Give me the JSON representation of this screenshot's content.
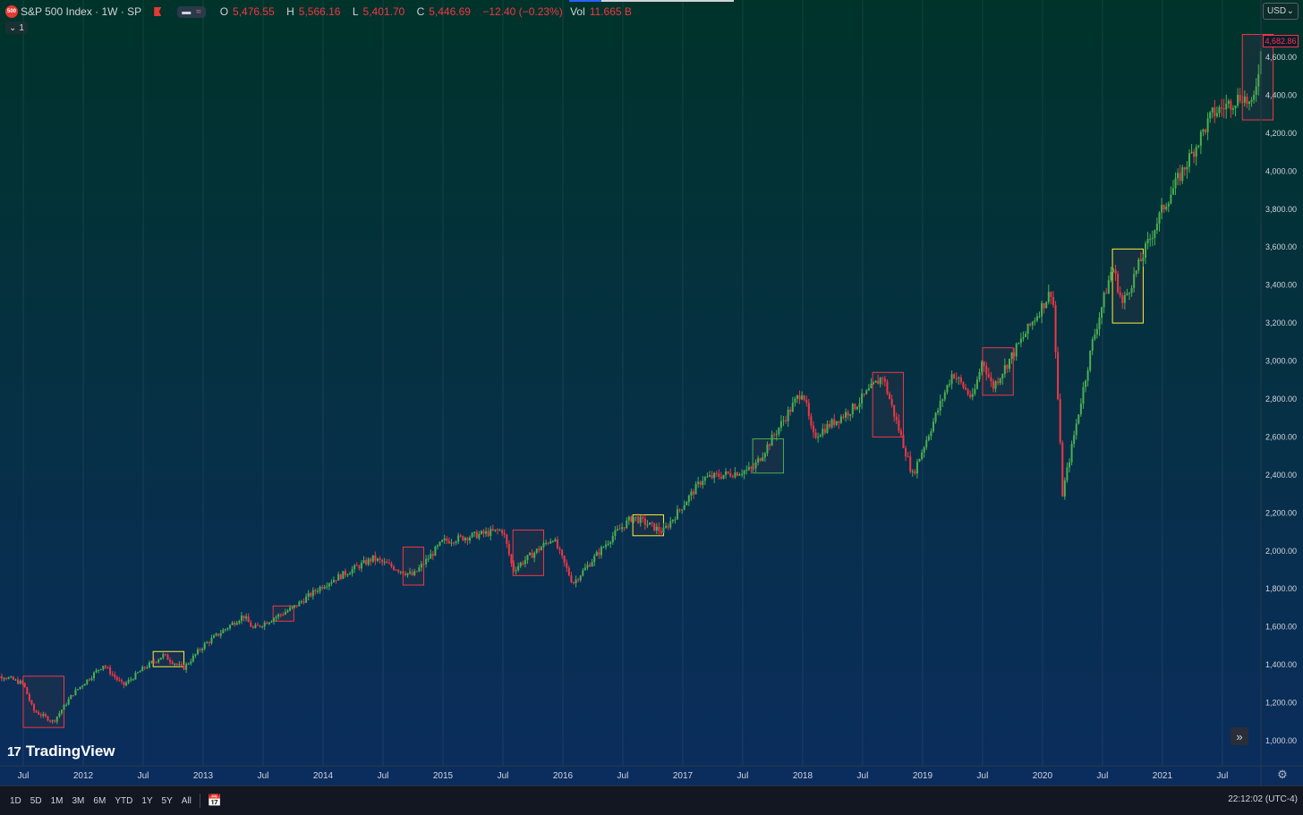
{
  "header": {
    "logo_badge": "500",
    "symbol_title": "S&P 500 Index · 1W · SP",
    "pill_a": "▬",
    "pill_b": "≈",
    "open_key": "O",
    "open_value": "5,476.55",
    "high_key": "H",
    "high_value": "5,566.16",
    "low_key": "L",
    "low_value": "5,401.70",
    "close_key": "C",
    "close_value": "5,446.69",
    "change_value": "−12.40 (−0.23%)",
    "vol_key": "Vol",
    "vol_value": "11.665 B",
    "collapse_label": "1",
    "currency": "USD"
  },
  "branding": {
    "name": "TradingView",
    "glyph": "17"
  },
  "bottom_bar": {
    "ranges": [
      "1D",
      "5D",
      "1M",
      "3M",
      "6M",
      "YTD",
      "1Y",
      "5Y",
      "All"
    ],
    "clock": "22:12:02 (UTC-4)"
  },
  "icons": {
    "scroll": "»",
    "settings": "⚙",
    "calendar": "📅",
    "chevron": "⌄"
  },
  "colors": {
    "up": "#26a69a",
    "up_body": "#4caf50",
    "down": "#f23645",
    "box_red": "#f23645",
    "box_yellow": "#ffeb3b",
    "box_green": "#4caf50",
    "bg_top": "#00332a",
    "bg_bottom": "#0b2d5e"
  },
  "chart_data": {
    "type": "candlestick",
    "title": "S&P 500 Index · 1W · SP",
    "last_price_label": "4,682.86",
    "y_axis": {
      "ylim": [
        920,
        4720
      ],
      "ticks": [
        1000,
        1200,
        1400,
        1600,
        1800,
        2000,
        2200,
        2400,
        2600,
        2800,
        3000,
        3200,
        3400,
        3600,
        3800,
        4000,
        4200,
        4400,
        4600
      ],
      "tick_labels": [
        "1,000.00",
        "1,200.00",
        "1,400.00",
        "1,600.00",
        "1,800.00",
        "2,000.00",
        "2,200.00",
        "2,400.00",
        "2,600.00",
        "2,800.00",
        "3,000.00",
        "3,200.00",
        "3,400.00",
        "3,600.00",
        "3,800.00",
        "4,000.00",
        "4,200.00",
        "4,400.00",
        "4,600.00"
      ]
    },
    "x_axis": {
      "range": [
        "2011-03",
        "2021-12"
      ],
      "ticks": [
        {
          "date": "2011-07",
          "label": "Jul"
        },
        {
          "date": "2012-01",
          "label": "2012"
        },
        {
          "date": "2012-07",
          "label": "Jul"
        },
        {
          "date": "2013-01",
          "label": "2013"
        },
        {
          "date": "2013-07",
          "label": "Jul"
        },
        {
          "date": "2014-01",
          "label": "2014"
        },
        {
          "date": "2014-07",
          "label": "Jul"
        },
        {
          "date": "2015-01",
          "label": "2015"
        },
        {
          "date": "2015-07",
          "label": "Jul"
        },
        {
          "date": "2016-01",
          "label": "2016"
        },
        {
          "date": "2016-07",
          "label": "Jul"
        },
        {
          "date": "2017-01",
          "label": "2017"
        },
        {
          "date": "2017-07",
          "label": "Jul"
        },
        {
          "date": "2018-01",
          "label": "2018"
        },
        {
          "date": "2018-07",
          "label": "Jul"
        },
        {
          "date": "2019-01",
          "label": "2019"
        },
        {
          "date": "2019-07",
          "label": "Jul"
        },
        {
          "date": "2020-01",
          "label": "2020"
        },
        {
          "date": "2020-07",
          "label": "Jul"
        },
        {
          "date": "2021-01",
          "label": "2021"
        },
        {
          "date": "2021-07",
          "label": "Jul"
        }
      ]
    },
    "grid": "vertical",
    "price_path": [
      {
        "date": "2011-03",
        "close": 1330
      },
      {
        "date": "2011-05",
        "close": 1340
      },
      {
        "date": "2011-07",
        "close": 1300
      },
      {
        "date": "2011-08",
        "close": 1160
      },
      {
        "date": "2011-10",
        "close": 1100
      },
      {
        "date": "2011-12",
        "close": 1250
      },
      {
        "date": "2012-03",
        "close": 1400
      },
      {
        "date": "2012-05",
        "close": 1290
      },
      {
        "date": "2012-07",
        "close": 1380
      },
      {
        "date": "2012-09",
        "close": 1450
      },
      {
        "date": "2012-11",
        "close": 1380
      },
      {
        "date": "2013-01",
        "close": 1500
      },
      {
        "date": "2013-05",
        "close": 1660
      },
      {
        "date": "2013-06",
        "close": 1590
      },
      {
        "date": "2013-10",
        "close": 1700
      },
      {
        "date": "2014-01",
        "close": 1820
      },
      {
        "date": "2014-06",
        "close": 1960
      },
      {
        "date": "2014-10",
        "close": 1870
      },
      {
        "date": "2015-01",
        "close": 2050
      },
      {
        "date": "2015-07",
        "close": 2110
      },
      {
        "date": "2015-08",
        "close": 1900
      },
      {
        "date": "2015-12",
        "close": 2070
      },
      {
        "date": "2016-02",
        "close": 1830
      },
      {
        "date": "2016-06",
        "close": 2080
      },
      {
        "date": "2016-08",
        "close": 2180
      },
      {
        "date": "2016-11",
        "close": 2100
      },
      {
        "date": "2017-03",
        "close": 2380
      },
      {
        "date": "2017-08",
        "close": 2430
      },
      {
        "date": "2018-01",
        "close": 2850
      },
      {
        "date": "2018-02",
        "close": 2600
      },
      {
        "date": "2018-06",
        "close": 2750
      },
      {
        "date": "2018-09",
        "close": 2920
      },
      {
        "date": "2018-12",
        "close": 2400
      },
      {
        "date": "2019-04",
        "close": 2940
      },
      {
        "date": "2019-06",
        "close": 2800
      },
      {
        "date": "2019-07",
        "close": 3010
      },
      {
        "date": "2019-08",
        "close": 2860
      },
      {
        "date": "2020-02",
        "close": 3380
      },
      {
        "date": "2020-03",
        "close": 2300
      },
      {
        "date": "2020-06",
        "close": 3100
      },
      {
        "date": "2020-08",
        "close": 3500
      },
      {
        "date": "2020-09",
        "close": 3300
      },
      {
        "date": "2021-01",
        "close": 3800
      },
      {
        "date": "2021-06",
        "close": 4300
      },
      {
        "date": "2021-09",
        "close": 4400
      },
      {
        "date": "2021-10",
        "close": 4330
      },
      {
        "date": "2021-11",
        "close": 4680
      }
    ],
    "annotation_boxes": [
      {
        "start": "2011-07",
        "end": "2011-10",
        "low": 1070,
        "high": 1340,
        "color": "red"
      },
      {
        "start": "2012-08",
        "end": "2012-10",
        "low": 1390,
        "high": 1470,
        "color": "yellow"
      },
      {
        "start": "2013-08",
        "end": "2013-09",
        "low": 1630,
        "high": 1710,
        "color": "red"
      },
      {
        "start": "2014-09",
        "end": "2014-10",
        "low": 1820,
        "high": 2020,
        "color": "red"
      },
      {
        "start": "2015-08",
        "end": "2015-10",
        "low": 1870,
        "high": 2110,
        "color": "red"
      },
      {
        "start": "2016-08",
        "end": "2016-10",
        "low": 2080,
        "high": 2190,
        "color": "yellow"
      },
      {
        "start": "2017-08",
        "end": "2017-10",
        "low": 2410,
        "high": 2590,
        "color": "green"
      },
      {
        "start": "2018-08",
        "end": "2018-10",
        "low": 2600,
        "high": 2940,
        "color": "red"
      },
      {
        "start": "2019-07",
        "end": "2019-09",
        "low": 2820,
        "high": 3070,
        "color": "red"
      },
      {
        "start": "2020-08",
        "end": "2020-10",
        "low": 3200,
        "high": 3590,
        "color": "yellow"
      },
      {
        "start": "2021-09",
        "end": "2021-11",
        "low": 4270,
        "high": 4720,
        "color": "red"
      }
    ]
  }
}
